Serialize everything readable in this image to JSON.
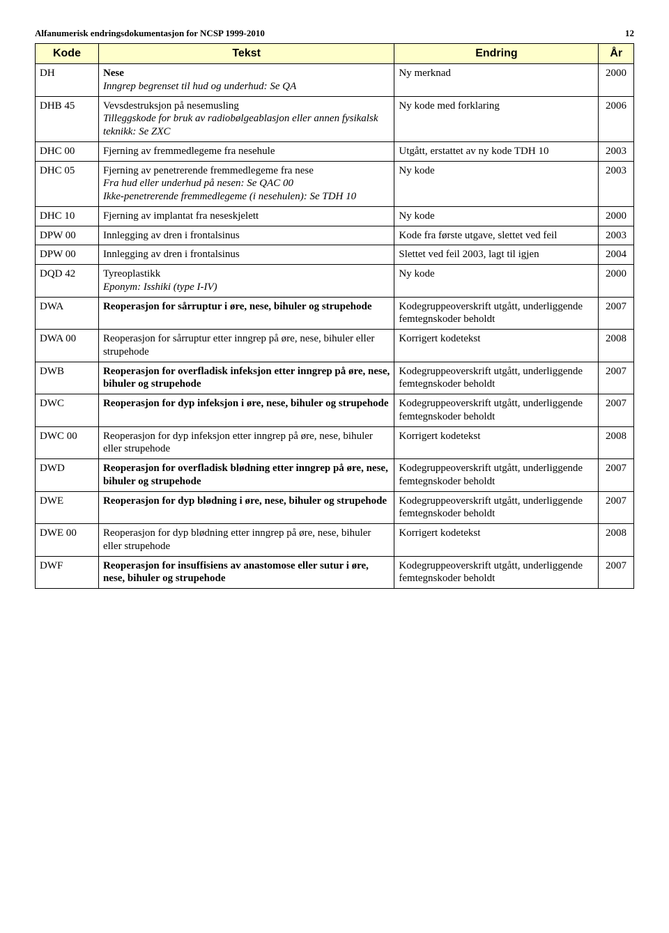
{
  "header": {
    "title": "Alfanumerisk endringsdokumentasjon for NCSP 1999-2010",
    "page_number": "12"
  },
  "columns": {
    "code": "Kode",
    "text": "Tekst",
    "change": "Endring",
    "year": "År"
  },
  "rows": [
    {
      "code": "DH",
      "text_bold": "Nese",
      "text_italic": "Inngrep begrenset til hud og underhud: Se QA",
      "change": "Ny merknad",
      "year": "2000"
    },
    {
      "code": "DHB 45",
      "text_plain": "Vevsdestruksjon på nesemusling",
      "text_italic": "Tilleggskode for bruk av radiobølgeablasjon eller annen fysikalsk teknikk: Se ZXC",
      "change": "Ny kode med forklaring",
      "year": "2006"
    },
    {
      "code": "DHC 00",
      "text_plain": "Fjerning av fremmedlegeme fra nesehule",
      "change": "Utgått, erstattet av ny kode TDH 10",
      "year": "2003"
    },
    {
      "code": "DHC 05",
      "text_plain": "Fjerning av penetrerende fremmedlegeme fra nese",
      "text_italic": "Fra hud eller underhud på nesen: Se QAC 00",
      "text_italic2": "Ikke-penetrerende fremmedlegeme (i nesehulen): Se TDH 10",
      "change": "Ny kode",
      "year": "2003"
    },
    {
      "code": "DHC 10",
      "text_plain": "Fjerning av implantat fra neseskjelett",
      "change": "Ny kode",
      "year": "2000"
    },
    {
      "code": "DPW 00",
      "text_plain": "Innlegging av dren i frontalsinus",
      "change": "Kode fra første utgave, slettet ved feil",
      "year": "2003"
    },
    {
      "code": "DPW 00",
      "text_plain": "Innlegging av dren i frontalsinus",
      "change": "Slettet ved feil 2003, lagt til igjen",
      "year": "2004"
    },
    {
      "code": "DQD 42",
      "text_plain": "Tyreoplastikk",
      "text_italic": "Eponym: Isshiki (type I-IV)",
      "change": "Ny kode",
      "year": "2000"
    },
    {
      "code": "DWA",
      "text_bold": "Reoperasjon for sårruptur i øre, nese, bihuler og strupehode",
      "change": "Kodegruppeoverskrift utgått, underliggende femtegnskoder beholdt",
      "year": "2007"
    },
    {
      "code": "DWA 00",
      "text_plain": "Reoperasjon for sårruptur etter inngrep på øre, nese, bihuler eller strupehode",
      "change": "Korrigert kodetekst",
      "year": "2008"
    },
    {
      "code": "DWB",
      "text_bold": "Reoperasjon for overfladisk infeksjon etter inngrep på øre, nese, bihuler og strupehode",
      "change": "Kodegruppeoverskrift utgått, underliggende femtegnskoder beholdt",
      "year": "2007"
    },
    {
      "code": "DWC",
      "text_bold": "Reoperasjon for dyp infeksjon i øre, nese, bihuler og strupehode",
      "change": "Kodegruppeoverskrift utgått, underliggende femtegnskoder beholdt",
      "year": "2007"
    },
    {
      "code": "DWC 00",
      "text_plain": "Reoperasjon for dyp infeksjon etter inngrep på øre, nese, bihuler eller strupehode",
      "change": "Korrigert kodetekst",
      "year": "2008"
    },
    {
      "code": "DWD",
      "text_bold": "Reoperasjon for overfladisk blødning etter inngrep på øre, nese, bihuler og strupehode",
      "change": "Kodegruppeoverskrift utgått, underliggende femtegnskoder beholdt",
      "year": "2007"
    },
    {
      "code": "DWE",
      "text_bold": "Reoperasjon for dyp blødning i øre, nese, bihuler og strupehode",
      "change": "Kodegruppeoverskrift utgått, underliggende femtegnskoder beholdt",
      "year": "2007"
    },
    {
      "code": "DWE 00",
      "text_plain": "Reoperasjon for dyp blødning etter inngrep på øre, nese, bihuler eller strupehode",
      "change": "Korrigert kodetekst",
      "year": "2008"
    },
    {
      "code": "DWF",
      "text_bold": "Reoperasjon for insuffisiens av anastomose eller sutur i øre, nese, bihuler og strupehode",
      "change": "Kodegruppeoverskrift utgått, underliggende femtegnskoder beholdt",
      "year": "2007"
    }
  ]
}
